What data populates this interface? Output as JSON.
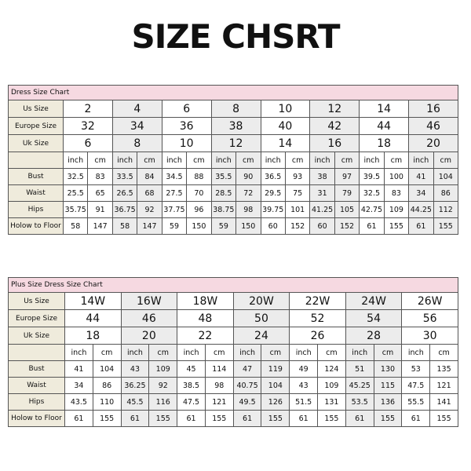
{
  "title": "SIZE CHSRT",
  "tables": [
    {
      "caption": "Dress Size Chart",
      "size_rows": [
        {
          "label": "Us Size",
          "values": [
            2,
            4,
            6,
            8,
            10,
            12,
            14,
            16
          ]
        },
        {
          "label": "Europe Size",
          "values": [
            32,
            34,
            36,
            38,
            40,
            42,
            44,
            46
          ]
        },
        {
          "label": "Uk Size",
          "values": [
            6,
            8,
            10,
            12,
            14,
            16,
            18,
            20
          ]
        }
      ],
      "units": [
        "inch",
        "cm",
        "inch",
        "cm",
        "inch",
        "cm",
        "inch",
        "cm",
        "inch",
        "cm",
        "inch",
        "cm",
        "inch",
        "cm",
        "inch",
        "cm"
      ],
      "measure_rows": [
        {
          "label": "Bust",
          "values": [
            32.5,
            83,
            33.5,
            84,
            34.5,
            88,
            35.5,
            90,
            36.5,
            93,
            38,
            97,
            39.5,
            100,
            41,
            104
          ]
        },
        {
          "label": "Waist",
          "values": [
            25.5,
            65,
            26.5,
            68,
            27.5,
            70,
            28.5,
            72,
            29.5,
            75,
            31,
            79,
            32.5,
            83,
            34,
            86
          ]
        },
        {
          "label": "Hips",
          "values": [
            35.75,
            91,
            36.75,
            92,
            37.75,
            96,
            38.75,
            98,
            39.75,
            101,
            41.25,
            105,
            42.75,
            109,
            44.25,
            112
          ]
        },
        {
          "label": "Holow to Floor",
          "values": [
            58,
            147,
            58,
            147,
            59,
            150,
            59,
            150,
            60,
            152,
            60,
            152,
            61,
            155,
            61,
            155
          ]
        }
      ]
    },
    {
      "caption": "Plus Size Dress Size Chart",
      "size_rows": [
        {
          "label": "Us Size",
          "values": [
            "14W",
            "16W",
            "18W",
            "20W",
            "22W",
            "24W",
            "26W"
          ]
        },
        {
          "label": "Europe Size",
          "values": [
            44,
            46,
            48,
            50,
            52,
            54,
            56
          ]
        },
        {
          "label": "Uk Size",
          "values": [
            18,
            20,
            22,
            24,
            26,
            28,
            30
          ]
        }
      ],
      "units": [
        "inch",
        "cm",
        "inch",
        "cm",
        "inch",
        "cm",
        "inch",
        "cm",
        "inch",
        "cm",
        "inch",
        "cm",
        "inch",
        "cm"
      ],
      "measure_rows": [
        {
          "label": "Bust",
          "values": [
            41,
            104,
            43,
            109,
            45,
            114,
            47,
            119,
            49,
            124,
            51,
            130,
            53,
            135
          ]
        },
        {
          "label": "Waist",
          "values": [
            34,
            86,
            36.25,
            92,
            38.5,
            98,
            40.75,
            104,
            43,
            109,
            45.25,
            115,
            47.5,
            121
          ]
        },
        {
          "label": "Hips",
          "values": [
            43.5,
            110,
            45.5,
            116,
            47.5,
            121,
            49.5,
            126,
            51.5,
            131,
            53.5,
            136,
            55.5,
            141
          ]
        },
        {
          "label": "Holow to Floor",
          "values": [
            61,
            155,
            61,
            155,
            61,
            155,
            61,
            155,
            61,
            155,
            61,
            155,
            61,
            155
          ]
        }
      ]
    }
  ]
}
